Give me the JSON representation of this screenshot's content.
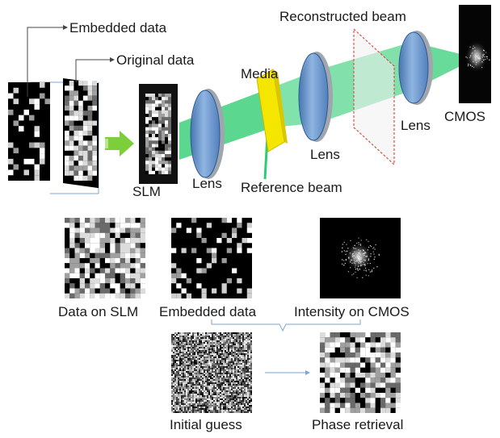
{
  "labels": {
    "embedded_data": "Embedded data",
    "original_data": "Original data",
    "reconstructed_beam": "Reconstructed beam",
    "media": "Media",
    "slm": "SLM",
    "lens_1": "Lens",
    "lens_2": "Lens",
    "lens_3": "Lens",
    "cmos": "CMOS",
    "reference_beam": "Reference beam"
  },
  "panels": {
    "data_on_slm": "Data on SLM",
    "embedded_data": "Embedded data",
    "intensity_on_cmos": "Intensity on CMOS",
    "initial_guess": "Initial guess",
    "phase_retrieval": "Phase retrieval"
  },
  "colors": {
    "beam": "#2ecc71",
    "lens": "#5b8fd0",
    "media": "#f5e600",
    "arrow_green": "#7ccf3a",
    "connector": "#7aa6d6",
    "plane_dash": "#d9534f"
  }
}
